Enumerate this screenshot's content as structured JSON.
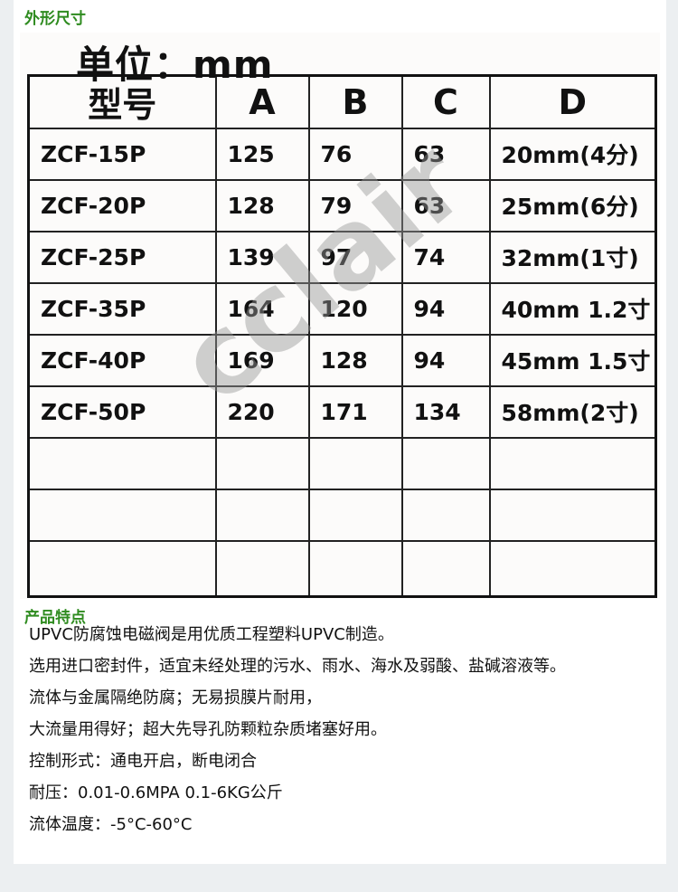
{
  "dimensions_title": "外形尺寸",
  "unit_label": "单位：mm",
  "watermark": "Accclair",
  "table": {
    "headers": [
      "型号",
      "A",
      "B",
      "C",
      "D"
    ],
    "rows": [
      [
        "ZCF-15P",
        "125",
        "76",
        "63",
        "20mm(4分)"
      ],
      [
        "ZCF-20P",
        "128",
        "79",
        "63",
        "25mm(6分)"
      ],
      [
        "ZCF-25P",
        "139",
        "97",
        "74",
        "32mm(1寸)"
      ],
      [
        "ZCF-35P",
        "164",
        "120",
        "94",
        "40mm 1.2寸"
      ],
      [
        "ZCF-40P",
        "169",
        "128",
        "94",
        "45mm 1.5寸"
      ],
      [
        "ZCF-50P",
        "220",
        "171",
        "134",
        "58mm(2寸)"
      ]
    ]
  },
  "features_title": "产品特点",
  "features": [
    "UPVC防腐蚀电磁阀是用优质工程塑料UPVC制造。",
    "选用进口密封件，适宜未经处理的污水、雨水、海水及弱酸、盐碱溶液等。",
    "流体与金属隔绝防腐；无易损膜片耐用，",
    "大流量用得好；超大先导孔防颗粒杂质堵塞好用。",
    "控制形式：通电开启，断电闭合",
    "耐压：0.01-0.6MPA 0.1-6KG公斤",
    "流体温度：-5°C-60°C"
  ],
  "colors": {
    "section_title": "#2e8b1f",
    "background": "#eceff1"
  }
}
